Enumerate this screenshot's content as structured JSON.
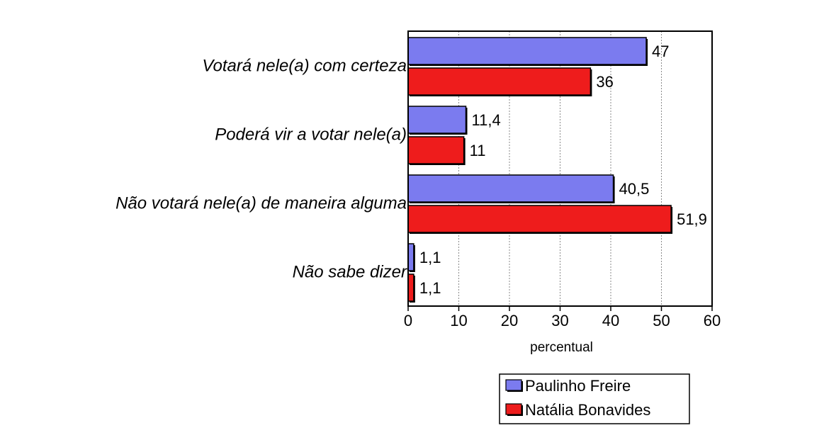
{
  "chart_data": {
    "type": "bar",
    "orientation": "horizontal",
    "categories": [
      "Votará nele(a) com certeza",
      "Poderá vir a votar nele(a)",
      "Não votará nele(a) de maneira alguma",
      "Não sabe dizer"
    ],
    "series": [
      {
        "name": "Paulinho Freire",
        "color": "#7b7bef",
        "values": [
          47,
          11.4,
          40.5,
          1.1
        ],
        "labels": [
          "47",
          "11,4",
          "40,5",
          "1,1"
        ]
      },
      {
        "name": "Natália Bonavides",
        "color": "#ee1c1c",
        "values": [
          36,
          11,
          51.9,
          1.1
        ],
        "labels": [
          "36",
          "11",
          "51,9",
          "1,1"
        ]
      }
    ],
    "xlabel": "percentual",
    "xlim": [
      0,
      60
    ],
    "xticks": [
      0,
      10,
      20,
      30,
      40,
      50,
      60
    ],
    "grid": "vertical-dotted",
    "legend_position": "bottom"
  }
}
